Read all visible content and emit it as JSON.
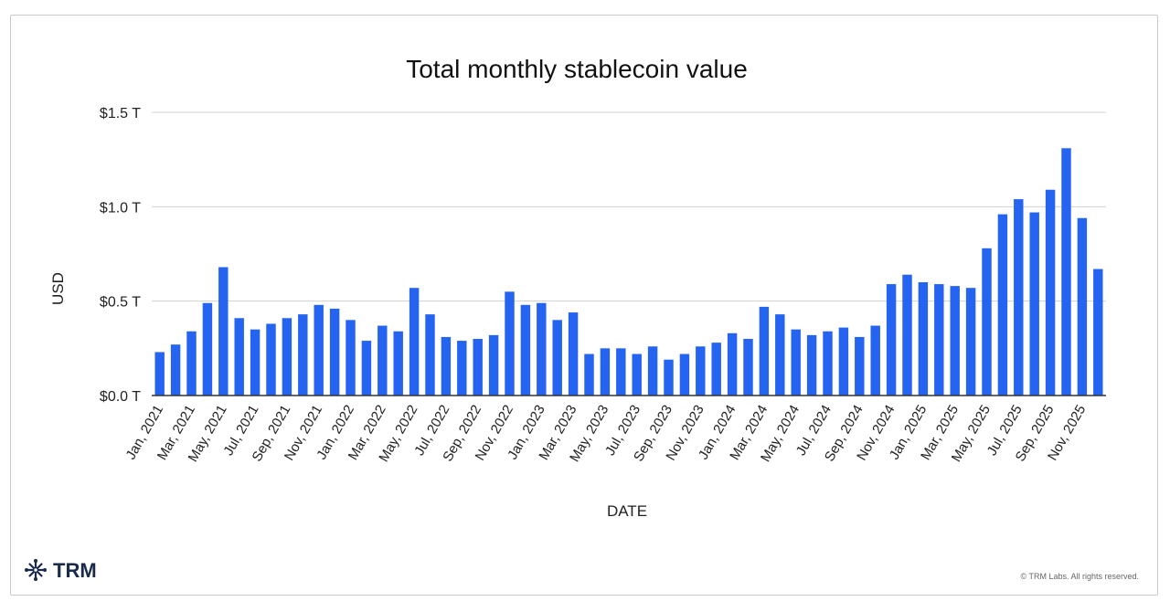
{
  "chart_data": {
    "type": "bar",
    "title": "Total monthly stablecoin value",
    "xlabel": "DATE",
    "ylabel": "USD",
    "ylim": [
      0,
      1.5
    ],
    "yticks": [
      {
        "value": 0.0,
        "label": "$0.0 T"
      },
      {
        "value": 0.5,
        "label": "$0.5 T"
      },
      {
        "value": 1.0,
        "label": "$1.0 T"
      },
      {
        "value": 1.5,
        "label": "$1.5 T"
      }
    ],
    "bar_color": "#2464f0",
    "categories": [
      "Jan, 2021",
      "Feb, 2021",
      "Mar, 2021",
      "Apr, 2021",
      "May, 2021",
      "Jun, 2021",
      "Jul, 2021",
      "Aug, 2021",
      "Sep, 2021",
      "Oct, 2021",
      "Nov, 2021",
      "Dec, 2021",
      "Jan, 2022",
      "Feb, 2022",
      "Mar, 2022",
      "Apr, 2022",
      "May, 2022",
      "Jun, 2022",
      "Jul, 2022",
      "Aug, 2022",
      "Sep, 2022",
      "Oct, 2022",
      "Nov, 2022",
      "Dec, 2022",
      "Jan, 2023",
      "Feb, 2023",
      "Mar, 2023",
      "Apr, 2023",
      "May, 2023",
      "Jun, 2023",
      "Jul, 2023",
      "Aug, 2023",
      "Sep, 2023",
      "Oct, 2023",
      "Nov, 2023",
      "Dec, 2023",
      "Jan, 2024",
      "Feb, 2024",
      "Mar, 2024",
      "Apr, 2024",
      "May, 2024",
      "Jun, 2024",
      "Jul, 2024",
      "Aug, 2024",
      "Sep, 2024",
      "Oct, 2024",
      "Nov, 2024",
      "Dec, 2024",
      "Jan, 2025",
      "Feb, 2025",
      "Mar, 2025",
      "Apr, 2025",
      "May, 2025",
      "Jun, 2025",
      "Jul, 2025",
      "Aug, 2025",
      "Sep, 2025",
      "Oct, 2025",
      "Nov, 2025",
      "Dec, 2025"
    ],
    "xtick_labels_shown": [
      "Jan, 2021",
      "Mar, 2021",
      "May, 2021",
      "Jul, 2021",
      "Sep, 2021",
      "Nov, 2021",
      "Jan, 2022",
      "Mar, 2022",
      "May, 2022",
      "Jul, 2022",
      "Sep, 2022",
      "Nov, 2022",
      "Jan, 2023",
      "Mar, 2023",
      "May, 2023",
      "Jul, 2023",
      "Sep, 2023",
      "Nov, 2023",
      "Jan, 2024",
      "Mar, 2024",
      "May, 2024",
      "Jul, 2024",
      "Sep, 2024",
      "Nov, 2024",
      "Jan, 2025",
      "Mar, 2025",
      "May, 2025",
      "Jul, 2025",
      "Sep, 2025",
      "Nov, 2025"
    ],
    "values": [
      0.23,
      0.27,
      0.34,
      0.49,
      0.68,
      0.41,
      0.35,
      0.38,
      0.41,
      0.43,
      0.48,
      0.46,
      0.4,
      0.29,
      0.37,
      0.34,
      0.57,
      0.43,
      0.31,
      0.29,
      0.3,
      0.32,
      0.55,
      0.48,
      0.49,
      0.4,
      0.44,
      0.22,
      0.25,
      0.25,
      0.22,
      0.26,
      0.19,
      0.22,
      0.26,
      0.28,
      0.33,
      0.3,
      0.47,
      0.43,
      0.35,
      0.32,
      0.34,
      0.36,
      0.31,
      0.37,
      0.59,
      0.64,
      0.6,
      0.59,
      0.58,
      0.57,
      0.78,
      0.96,
      1.04,
      0.97,
      1.09,
      1.31,
      0.94,
      0.67
    ]
  },
  "footer": {
    "logo_text": "TRM",
    "copyright": "© TRM Labs. All rights reserved."
  },
  "icons": {
    "logo": "trm-logo-icon"
  }
}
